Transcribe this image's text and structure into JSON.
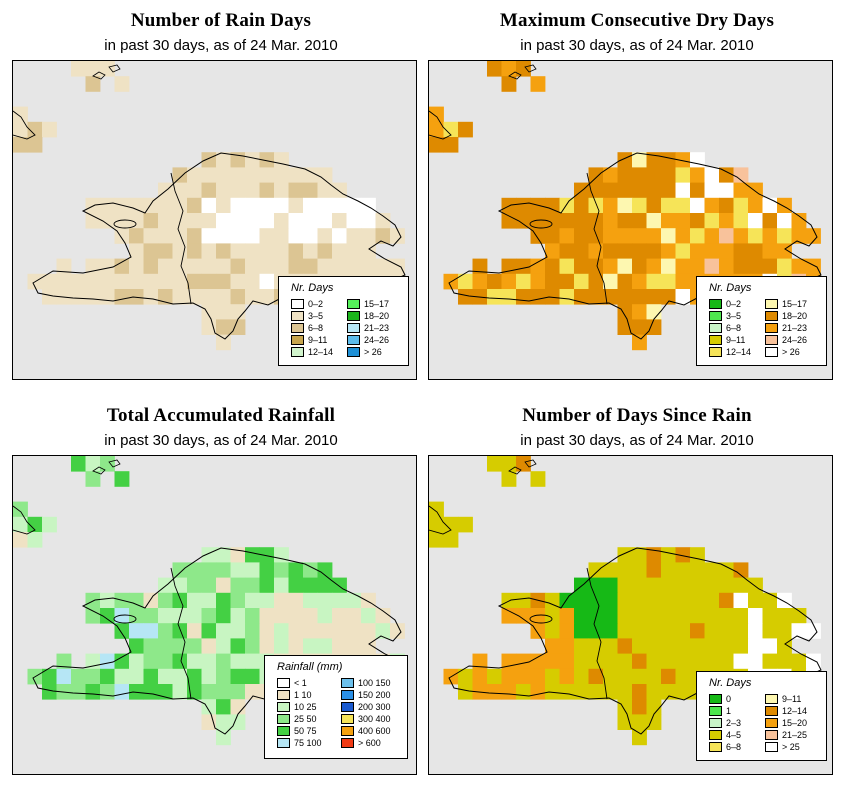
{
  "panels": [
    {
      "title": "Number of Rain Days",
      "subtitle": "in past 30 days, as of  24 Mar. 2010",
      "legend_title": "Nr. Days",
      "legend": [
        {
          "label": "0–2",
          "color": "#ffffff"
        },
        {
          "label": "3–5",
          "color": "#efe2c4"
        },
        {
          "label": "6–8",
          "color": "#dcc593"
        },
        {
          "label": "9–11",
          "color": "#c8a64e"
        },
        {
          "label": "12–14",
          "color": "#d2f5cd"
        },
        {
          "label": "15–17",
          "color": "#55f05a"
        },
        {
          "label": "18–20",
          "color": "#1cb51c"
        },
        {
          "label": "21–23",
          "color": "#b6e6f5"
        },
        {
          "label": "24–26",
          "color": "#5cbcec"
        },
        {
          "label": "> 26",
          "color": "#1e90d6"
        }
      ]
    },
    {
      "title": "Maximum Consecutive Dry Days",
      "subtitle": "in past 30 days, as of  24 Mar. 2010",
      "legend_title": "Nr. Days",
      "legend": [
        {
          "label": "0–2",
          "color": "#16b916"
        },
        {
          "label": "3–5",
          "color": "#4ee64e"
        },
        {
          "label": "6–8",
          "color": "#c9f5c8"
        },
        {
          "label": "9–11",
          "color": "#d6cc00"
        },
        {
          "label": "12–14",
          "color": "#f6e458"
        },
        {
          "label": "15–17",
          "color": "#fdf7b0"
        },
        {
          "label": "18–20",
          "color": "#de8a00"
        },
        {
          "label": "21–23",
          "color": "#f5a10f"
        },
        {
          "label": "24–26",
          "color": "#f8c29b"
        },
        {
          "label": "> 26",
          "color": "#ffffff"
        }
      ]
    },
    {
      "title": "Total Accumulated Rainfall",
      "subtitle": "in past 30 days, as of  24 Mar. 2010",
      "legend_title": "Rainfall (mm)",
      "legend": [
        {
          "label": "< 1",
          "color": "#ffffff"
        },
        {
          "label": "1     10",
          "color": "#efe2c4"
        },
        {
          "label": "10    25",
          "color": "#c8f5c2"
        },
        {
          "label": "25    50",
          "color": "#8ee88a"
        },
        {
          "label": "50    75",
          "color": "#44d044"
        },
        {
          "label": "75  100",
          "color": "#b6e6f5"
        },
        {
          "label": "100  150",
          "color": "#6cc0ec"
        },
        {
          "label": "150  200",
          "color": "#2a8fe6"
        },
        {
          "label": "200  300",
          "color": "#1a5ad0"
        },
        {
          "label": "300  400",
          "color": "#f6e458"
        },
        {
          "label": "400  600",
          "color": "#f5a10f"
        },
        {
          "label": "> 600",
          "color": "#f03a14"
        }
      ]
    },
    {
      "title": "Number of Days Since Rain",
      "subtitle": "in past 30 days, as of  24 Mar. 2010",
      "legend_title": "Nr. Days",
      "legend": [
        {
          "label": "0",
          "color": "#16b916"
        },
        {
          "label": "1",
          "color": "#4ee64e"
        },
        {
          "label": "2–3",
          "color": "#c9f5c8"
        },
        {
          "label": "4–5",
          "color": "#d6cc00"
        },
        {
          "label": "6–8",
          "color": "#f6e458"
        },
        {
          "label": "9–11",
          "color": "#fdf7b0"
        },
        {
          "label": "12–14",
          "color": "#de8a00"
        },
        {
          "label": "15–20",
          "color": "#f5a10f"
        },
        {
          "label": "21–25",
          "color": "#f8c29b"
        },
        {
          "label": "> 25",
          "color": "#ffffff"
        }
      ]
    }
  ]
}
